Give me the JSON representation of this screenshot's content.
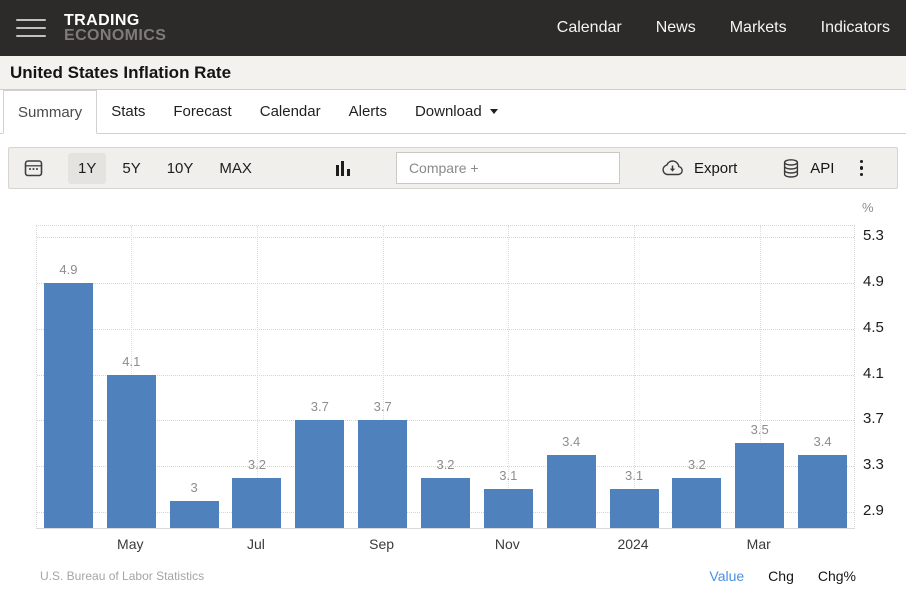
{
  "header": {
    "logo_line1": "TRADING",
    "logo_line2": "ECONOMICS",
    "nav": [
      {
        "label": "Calendar"
      },
      {
        "label": "News"
      },
      {
        "label": "Markets"
      },
      {
        "label": "Indicators"
      }
    ]
  },
  "title": "United States Inflation Rate",
  "tabs": [
    {
      "label": "Summary",
      "active": true
    },
    {
      "label": "Stats"
    },
    {
      "label": "Forecast"
    },
    {
      "label": "Calendar"
    },
    {
      "label": "Alerts"
    },
    {
      "label": "Download",
      "has_caret": true
    }
  ],
  "toolbar": {
    "ranges": [
      {
        "label": "1Y",
        "active": true
      },
      {
        "label": "5Y"
      },
      {
        "label": "10Y"
      },
      {
        "label": "MAX"
      }
    ],
    "compare_placeholder": "Compare +",
    "export_label": "Export",
    "api_label": "API"
  },
  "icons": {
    "hamburger": "hamburger-icon",
    "calendar": "calendar-icon",
    "columns": "bar-chart-type-icon",
    "export": "cloud-download-icon",
    "api": "database-icon",
    "kebab": "kebab-menu-icon",
    "download_caret": "caret-down-icon"
  },
  "chart_data": {
    "type": "bar",
    "title": "United States Inflation Rate",
    "unit_label": "%",
    "values": [
      4.9,
      4.1,
      3.0,
      3.2,
      3.7,
      3.7,
      3.2,
      3.1,
      3.4,
      3.1,
      3.2,
      3.5,
      3.4
    ],
    "value_labels": [
      "4.9",
      "4.1",
      "3",
      "3.2",
      "3.7",
      "3.7",
      "3.2",
      "3.1",
      "3.4",
      "3.1",
      "3.2",
      "3.5",
      "3.4"
    ],
    "xticks": [
      {
        "bar_index": 1,
        "label": "May"
      },
      {
        "bar_index": 3,
        "label": "Jul"
      },
      {
        "bar_index": 5,
        "label": "Sep"
      },
      {
        "bar_index": 7,
        "label": "Nov"
      },
      {
        "bar_index": 9,
        "label": "2024"
      },
      {
        "bar_index": 11,
        "label": "Mar"
      }
    ],
    "yticks": [
      {
        "value": 5.3,
        "label": "5.3"
      },
      {
        "value": 4.9,
        "label": "4.9"
      },
      {
        "value": 4.5,
        "label": "4.5"
      },
      {
        "value": 4.1,
        "label": "4.1"
      },
      {
        "value": 3.7,
        "label": "3.7"
      },
      {
        "value": 3.3,
        "label": "3.3"
      },
      {
        "value": 2.9,
        "label": "2.9"
      }
    ],
    "ylim": [
      2.76,
      5.4
    ],
    "grid": "dotted",
    "legend": "none",
    "bar_color": "#4f81bd",
    "source": "U.S. Bureau of Labor Statistics"
  },
  "chart_footer": {
    "source": "U.S. Bureau of Labor Statistics",
    "modes": [
      {
        "label": "Value",
        "active": true
      },
      {
        "label": "Chg"
      },
      {
        "label": "Chg%"
      }
    ]
  },
  "colors": {
    "header_bg": "#2d2b2a",
    "bar_blue": "#4f81bd",
    "active_mode_blue": "#4a90e2",
    "toolbar_bg": "#f1efec",
    "title_bar_bg": "#f3f2ef"
  }
}
